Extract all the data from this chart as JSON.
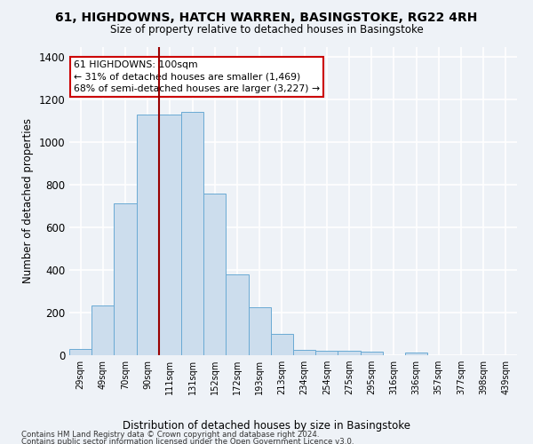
{
  "title": "61, HIGHDOWNS, HATCH WARREN, BASINGSTOKE, RG22 4RH",
  "subtitle": "Size of property relative to detached houses in Basingstoke",
  "xlabel": "Distribution of detached houses by size in Basingstoke",
  "ylabel": "Number of detached properties",
  "footnote1": "Contains HM Land Registry data © Crown copyright and database right 2024.",
  "footnote2": "Contains public sector information licensed under the Open Government Licence v3.0.",
  "bin_labels": [
    "29sqm",
    "49sqm",
    "70sqm",
    "90sqm",
    "111sqm",
    "131sqm",
    "152sqm",
    "172sqm",
    "193sqm",
    "213sqm",
    "234sqm",
    "254sqm",
    "275sqm",
    "295sqm",
    "316sqm",
    "336sqm",
    "357sqm",
    "377sqm",
    "398sqm",
    "439sqm"
  ],
  "bar_values": [
    28,
    235,
    715,
    1130,
    1130,
    1145,
    760,
    380,
    225,
    100,
    27,
    22,
    20,
    15,
    0,
    12,
    0,
    0,
    0,
    0
  ],
  "bar_color": "#ccdded",
  "bar_edge_color": "#6aaad4",
  "vline_x_index": 3,
  "vline_color": "#990000",
  "annotation_text": "61 HIGHDOWNS: 100sqm\n← 31% of detached houses are smaller (1,469)\n68% of semi-detached houses are larger (3,227) →",
  "annotation_box_color": "white",
  "annotation_box_edge": "#cc0000",
  "ylim": [
    0,
    1450
  ],
  "yticks": [
    0,
    200,
    400,
    600,
    800,
    1000,
    1200,
    1400
  ],
  "background_color": "#eef2f7",
  "grid_color": "white"
}
